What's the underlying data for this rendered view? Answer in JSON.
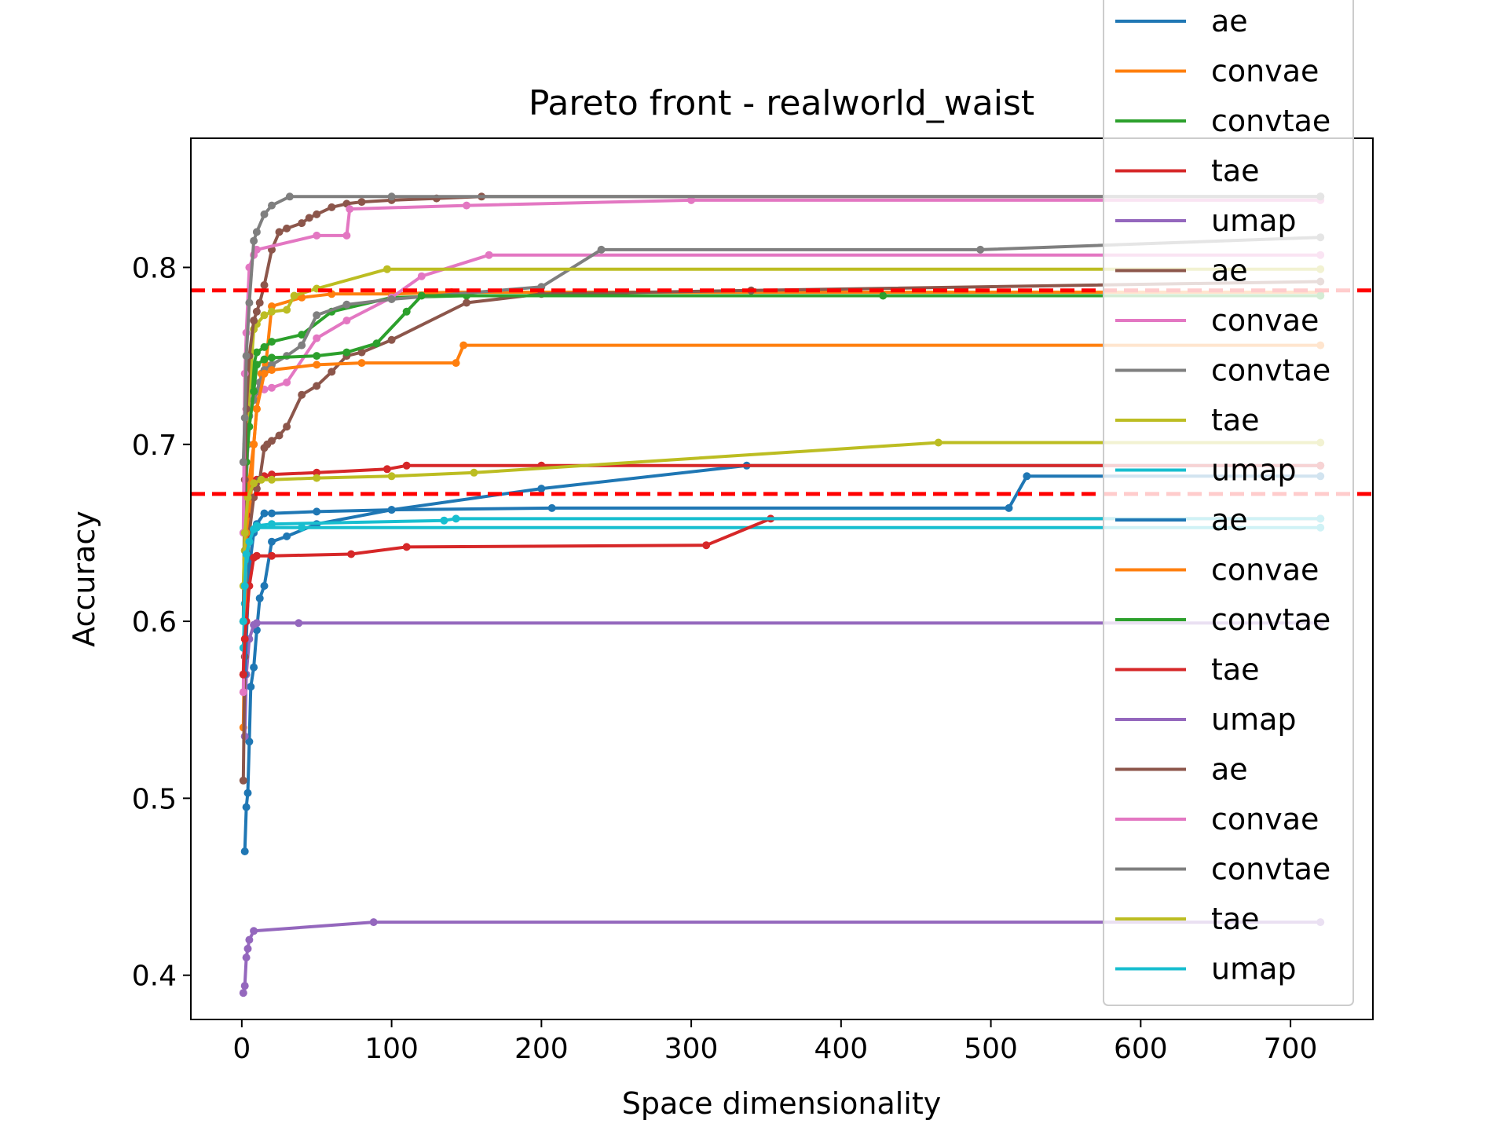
{
  "chart_data": {
    "type": "line",
    "title": "Pareto front - realworld_waist",
    "xlabel": "Space dimensionality",
    "ylabel": "Accuracy",
    "xlim": [
      -34,
      755
    ],
    "ylim": [
      0.375,
      0.873
    ],
    "xticks": [
      0,
      100,
      200,
      300,
      400,
      500,
      600,
      700
    ],
    "yticks": [
      0.4,
      0.5,
      0.6,
      0.7,
      0.8
    ],
    "xtick_labels": [
      "0",
      "100",
      "200",
      "300",
      "400",
      "500",
      "600",
      "700"
    ],
    "ytick_labels": [
      "0.4",
      "0.5",
      "0.6",
      "0.7",
      "0.8"
    ],
    "grid": false,
    "legend_position": "top-right",
    "hlines": [
      {
        "y": 0.787,
        "color": "#ff0000",
        "style": "dashed"
      },
      {
        "y": 0.672,
        "color": "#ff0000",
        "style": "dashed"
      }
    ],
    "series": [
      {
        "name": "ae",
        "color": "#1f77b4",
        "x": [
          2,
          3,
          4,
          5,
          6,
          8,
          10,
          12,
          15,
          20,
          30,
          50,
          100,
          200,
          337,
          720
        ],
        "y": [
          0.47,
          0.495,
          0.503,
          0.532,
          0.563,
          0.574,
          0.595,
          0.613,
          0.62,
          0.645,
          0.648,
          0.655,
          0.663,
          0.675,
          0.688,
          0.688
        ]
      },
      {
        "name": "convae",
        "color": "#ff7f0e",
        "x": [
          1,
          2,
          4,
          6,
          8,
          10,
          13,
          16,
          20,
          40,
          60,
          100,
          140,
          720
        ],
        "y": [
          0.54,
          0.6,
          0.65,
          0.67,
          0.7,
          0.72,
          0.74,
          0.745,
          0.778,
          0.783,
          0.785,
          0.785,
          0.786,
          0.786
        ]
      },
      {
        "name": "convtae",
        "color": "#2ca02c",
        "x": [
          2,
          3,
          5,
          8,
          10,
          15,
          20,
          40,
          60,
          100,
          150,
          720
        ],
        "y": [
          0.62,
          0.68,
          0.72,
          0.745,
          0.752,
          0.755,
          0.758,
          0.762,
          0.775,
          0.783,
          0.784,
          0.784
        ]
      },
      {
        "name": "tae",
        "color": "#d62728",
        "x": [
          1,
          3,
          5,
          8,
          10,
          15,
          20,
          50,
          97,
          110,
          200,
          720
        ],
        "y": [
          0.57,
          0.66,
          0.675,
          0.678,
          0.68,
          0.682,
          0.683,
          0.684,
          0.686,
          0.688,
          0.688,
          0.688
        ]
      },
      {
        "name": "umap",
        "color": "#9467bd",
        "x": [
          2,
          3,
          5,
          8,
          10,
          38,
          720
        ],
        "y": [
          0.535,
          0.57,
          0.59,
          0.598,
          0.599,
          0.599,
          0.599
        ]
      },
      {
        "name": "ae",
        "color": "#8c564b",
        "x": [
          1,
          2,
          3,
          5,
          8,
          10,
          12,
          15,
          17,
          20,
          25,
          30,
          40,
          50,
          60,
          70,
          80,
          100,
          150,
          200,
          340,
          720
        ],
        "y": [
          0.51,
          0.58,
          0.62,
          0.65,
          0.67,
          0.675,
          0.68,
          0.698,
          0.7,
          0.702,
          0.705,
          0.71,
          0.728,
          0.733,
          0.741,
          0.75,
          0.752,
          0.759,
          0.78,
          0.785,
          0.787,
          0.792
        ]
      },
      {
        "name": "convae",
        "color": "#e377c2",
        "x": [
          1,
          2,
          3,
          5,
          8,
          10,
          15,
          20,
          30,
          50,
          70,
          100,
          120,
          165,
          720
        ],
        "y": [
          0.56,
          0.64,
          0.7,
          0.724,
          0.728,
          0.73,
          0.731,
          0.732,
          0.735,
          0.76,
          0.77,
          0.783,
          0.795,
          0.807,
          0.807
        ]
      },
      {
        "name": "convtae",
        "color": "#7f7f7f",
        "x": [
          2,
          3,
          4,
          5,
          8,
          10,
          12,
          15,
          20,
          30,
          40,
          50,
          70,
          100,
          200,
          240,
          493,
          720
        ],
        "y": [
          0.62,
          0.68,
          0.7,
          0.716,
          0.725,
          0.73,
          0.735,
          0.742,
          0.745,
          0.75,
          0.756,
          0.773,
          0.779,
          0.782,
          0.789,
          0.81,
          0.81,
          0.817
        ]
      },
      {
        "name": "tae",
        "color": "#bcbd22",
        "x": [
          2,
          3,
          5,
          8,
          10,
          15,
          20,
          30,
          35,
          50,
          97,
          720
        ],
        "y": [
          0.64,
          0.7,
          0.73,
          0.765,
          0.768,
          0.773,
          0.775,
          0.776,
          0.784,
          0.788,
          0.799,
          0.799
        ]
      },
      {
        "name": "umap",
        "color": "#17becf",
        "x": [
          1,
          2,
          3,
          5,
          8,
          10,
          40,
          720
        ],
        "y": [
          0.585,
          0.61,
          0.635,
          0.645,
          0.652,
          0.653,
          0.653,
          0.653
        ]
      },
      {
        "name": "ae",
        "color": "#1f77b4",
        "x": [
          2,
          5,
          8,
          10,
          15,
          20,
          50,
          100,
          207,
          512,
          524,
          720
        ],
        "y": [
          0.57,
          0.63,
          0.65,
          0.655,
          0.661,
          0.661,
          0.662,
          0.663,
          0.664,
          0.664,
          0.682,
          0.682
        ]
      },
      {
        "name": "convae",
        "color": "#ff7f0e",
        "x": [
          2,
          3,
          5,
          8,
          10,
          15,
          20,
          50,
          80,
          143,
          148,
          720
        ],
        "y": [
          0.6,
          0.65,
          0.68,
          0.7,
          0.72,
          0.74,
          0.742,
          0.745,
          0.746,
          0.746,
          0.756,
          0.756
        ]
      },
      {
        "name": "convtae",
        "color": "#2ca02c",
        "x": [
          2,
          3,
          5,
          8,
          10,
          15,
          20,
          50,
          70,
          90,
          110,
          120,
          428,
          720
        ],
        "y": [
          0.65,
          0.69,
          0.71,
          0.73,
          0.745,
          0.748,
          0.749,
          0.75,
          0.752,
          0.757,
          0.775,
          0.784,
          0.784,
          0.784
        ]
      },
      {
        "name": "tae",
        "color": "#d62728",
        "x": [
          1,
          2,
          3,
          5,
          8,
          10,
          20,
          73,
          110,
          310,
          353,
          720
        ],
        "y": [
          0.57,
          0.59,
          0.6,
          0.62,
          0.636,
          0.637,
          0.637,
          0.638,
          0.642,
          0.643,
          0.658,
          0.658
        ]
      },
      {
        "name": "umap",
        "color": "#9467bd",
        "x": [
          1,
          2,
          3,
          4,
          5,
          8,
          88,
          720
        ],
        "y": [
          0.39,
          0.394,
          0.41,
          0.415,
          0.42,
          0.425,
          0.43,
          0.43
        ]
      },
      {
        "name": "ae",
        "color": "#8c564b",
        "x": [
          1,
          2,
          3,
          5,
          8,
          10,
          12,
          15,
          20,
          25,
          30,
          40,
          45,
          50,
          60,
          70,
          80,
          100,
          130,
          160,
          720
        ],
        "y": [
          0.6,
          0.68,
          0.72,
          0.75,
          0.77,
          0.775,
          0.78,
          0.79,
          0.81,
          0.82,
          0.822,
          0.825,
          0.828,
          0.83,
          0.834,
          0.836,
          0.837,
          0.838,
          0.839,
          0.84,
          0.84
        ]
      },
      {
        "name": "convae",
        "color": "#e377c2",
        "x": [
          1,
          2,
          3,
          5,
          8,
          10,
          50,
          70,
          72,
          150,
          300,
          720
        ],
        "y": [
          0.65,
          0.74,
          0.763,
          0.8,
          0.807,
          0.81,
          0.818,
          0.818,
          0.833,
          0.835,
          0.838,
          0.838
        ]
      },
      {
        "name": "convtae",
        "color": "#7f7f7f",
        "x": [
          1,
          2,
          3,
          5,
          8,
          10,
          15,
          20,
          32,
          100,
          720
        ],
        "y": [
          0.69,
          0.715,
          0.75,
          0.78,
          0.815,
          0.82,
          0.83,
          0.835,
          0.84,
          0.84,
          0.84
        ]
      },
      {
        "name": "tae",
        "color": "#bcbd22",
        "x": [
          1,
          2,
          4,
          8,
          13,
          20,
          50,
          100,
          155,
          465,
          720
        ],
        "y": [
          0.62,
          0.65,
          0.67,
          0.678,
          0.68,
          0.68,
          0.681,
          0.682,
          0.684,
          0.701,
          0.701
        ]
      },
      {
        "name": "umap",
        "color": "#17becf",
        "x": [
          1,
          2,
          3,
          5,
          8,
          10,
          20,
          135,
          143,
          720
        ],
        "y": [
          0.6,
          0.62,
          0.638,
          0.645,
          0.652,
          0.654,
          0.655,
          0.657,
          0.658,
          0.658
        ]
      }
    ]
  }
}
